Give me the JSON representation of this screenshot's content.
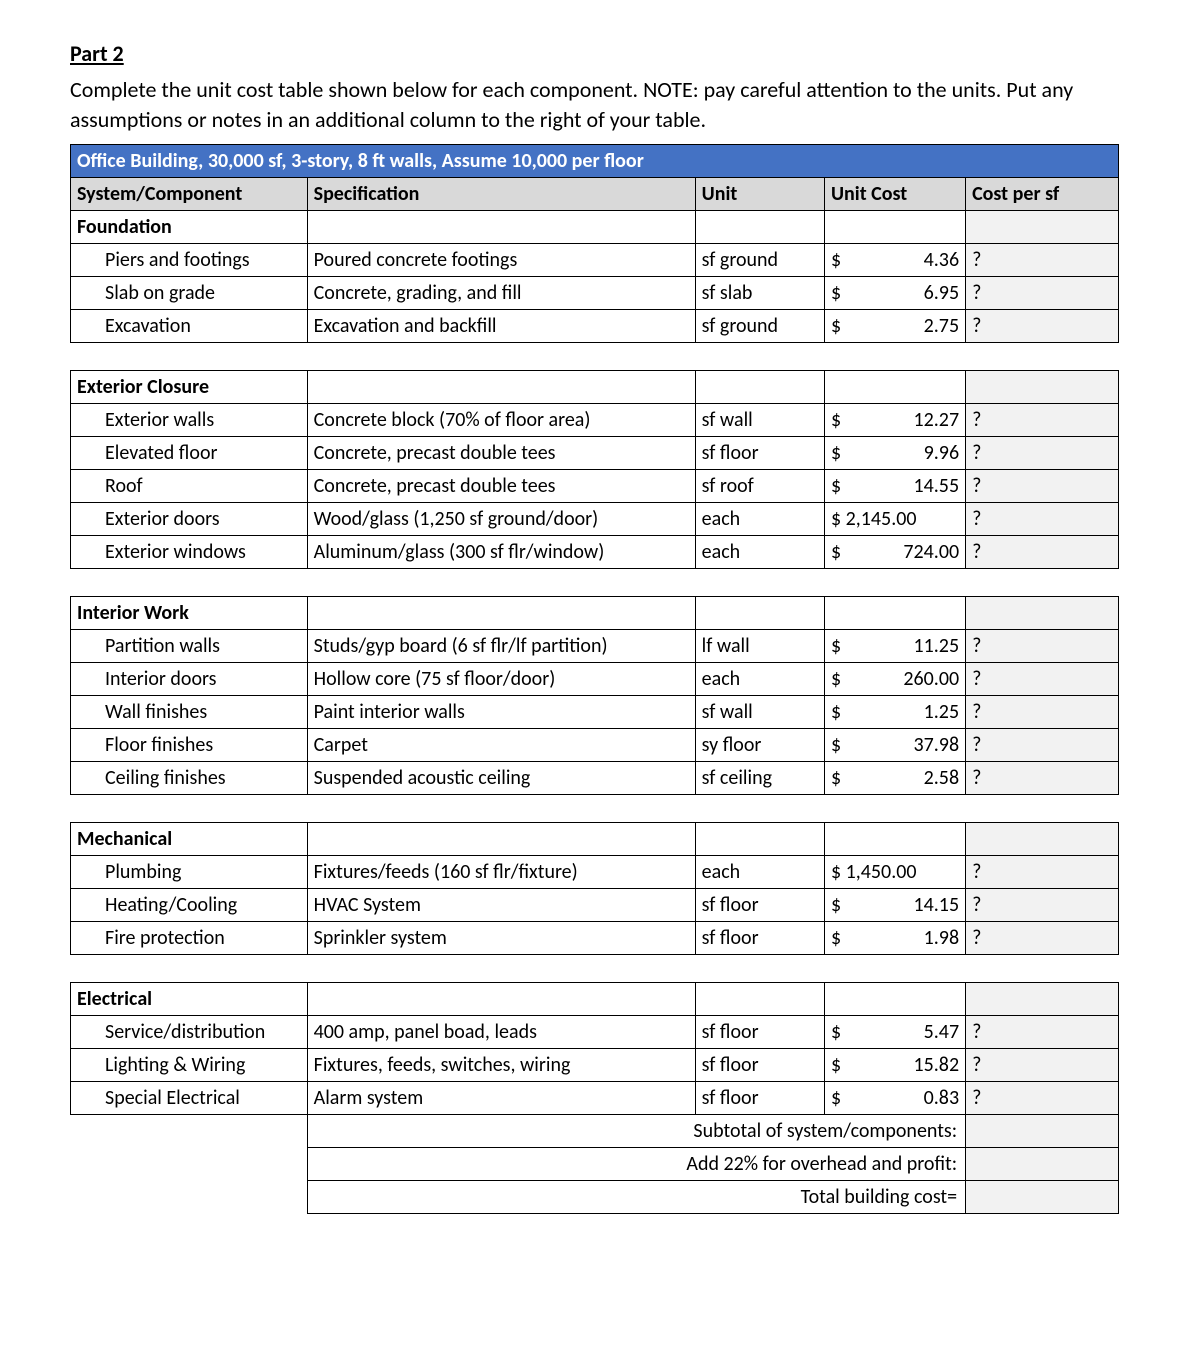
{
  "heading": "Part 2",
  "instructions": "Complete the unit cost table shown below for each component. NOTE: pay careful attention to the units. Put any assumptions or notes in an additional column to the right of your table.",
  "table_title": "Office Building, 30,000 sf, 3-story, 8 ft walls, Assume 10,000 per floor",
  "headers": {
    "c1": "System/Component",
    "c2": "Specification",
    "c3": "Unit",
    "c4": "Unit Cost",
    "c5": "Cost per sf"
  },
  "sections": [
    {
      "name": "Foundation",
      "rows": [
        {
          "comp": "Piers and footings",
          "spec": "Poured concrete footings",
          "unit": "sf ground",
          "cost": "4.36",
          "cps": "?"
        },
        {
          "comp": "Slab on grade",
          "spec": "Concrete, grading, and fill",
          "unit": "sf slab",
          "cost": "6.95",
          "cps": "?"
        },
        {
          "comp": "Excavation",
          "spec": "Excavation and backfill",
          "unit": "sf ground",
          "cost": "2.75",
          "cps": "?"
        }
      ]
    },
    {
      "name": "Exterior Closure",
      "rows": [
        {
          "comp": "Exterior walls",
          "spec": "Concrete block (70% of floor area)",
          "unit": "sf wall",
          "cost": "12.27",
          "cps": "?"
        },
        {
          "comp": "Elevated floor",
          "spec": "Concrete, precast double tees",
          "unit": "sf floor",
          "cost": "9.96",
          "cps": "?"
        },
        {
          "comp": "Roof",
          "spec": "Concrete, precast double tees",
          "unit": "sf roof",
          "cost": "14.55",
          "cps": "?"
        },
        {
          "comp": "Exterior doors",
          "spec": "Wood/glass (1,250 sf ground/door)",
          "unit": "each",
          "cost": "2,145.00",
          "cps": "?",
          "tight": true
        },
        {
          "comp": "Exterior windows",
          "spec": "Aluminum/glass (300 sf flr/window)",
          "unit": "each",
          "cost": "724.00",
          "cps": "?"
        }
      ]
    },
    {
      "name": "Interior Work",
      "rows": [
        {
          "comp": "Partition walls",
          "spec": "Studs/gyp board (6 sf flr/lf partition)",
          "unit": "lf wall",
          "cost": "11.25",
          "cps": "?"
        },
        {
          "comp": "Interior doors",
          "spec": "Hollow core (75 sf floor/door)",
          "unit": "each",
          "cost": "260.00",
          "cps": "?"
        },
        {
          "comp": "Wall finishes",
          "spec": "Paint interior walls",
          "unit": "sf wall",
          "cost": "1.25",
          "cps": "?"
        },
        {
          "comp": "Floor finishes",
          "spec": "Carpet",
          "unit": "sy floor",
          "cost": "37.98",
          "cps": "?"
        },
        {
          "comp": "Ceiling finishes",
          "spec": "Suspended acoustic ceiling",
          "unit": "sf ceiling",
          "cost": "2.58",
          "cps": "?"
        }
      ]
    },
    {
      "name": "Mechanical",
      "rows": [
        {
          "comp": "Plumbing",
          "spec": "Fixtures/feeds (160 sf flr/fixture)",
          "unit": "each",
          "cost": "1,450.00",
          "cps": "?",
          "tight": true
        },
        {
          "comp": "Heating/Cooling",
          "spec": "HVAC System",
          "unit": "sf floor",
          "cost": "14.15",
          "cps": "?"
        },
        {
          "comp": "Fire protection",
          "spec": "Sprinkler system",
          "unit": "sf floor",
          "cost": "1.98",
          "cps": "?"
        }
      ]
    },
    {
      "name": "Electrical",
      "rows": [
        {
          "comp": "Service/distribution",
          "spec": "400 amp, panel boad, leads",
          "unit": "sf floor",
          "cost": "5.47",
          "cps": "?"
        },
        {
          "comp": "Lighting & Wiring",
          "spec": "Fixtures, feeds, switches, wiring",
          "unit": "sf floor",
          "cost": "15.82",
          "cps": "?"
        },
        {
          "comp": "Special Electrical",
          "spec": "Alarm system",
          "unit": "sf floor",
          "cost": "0.83",
          "cps": "?"
        }
      ]
    }
  ],
  "totals": {
    "subtotal": "Subtotal of system/components:",
    "overhead": "Add 22% for overhead and profit:",
    "total": "Total building cost="
  },
  "colors": {
    "title_bg": "#4472c4",
    "title_fg": "#ffffff",
    "header_bg": "#d9d9d9",
    "cost_bg": "#f2f2f2",
    "border": "#000000"
  }
}
